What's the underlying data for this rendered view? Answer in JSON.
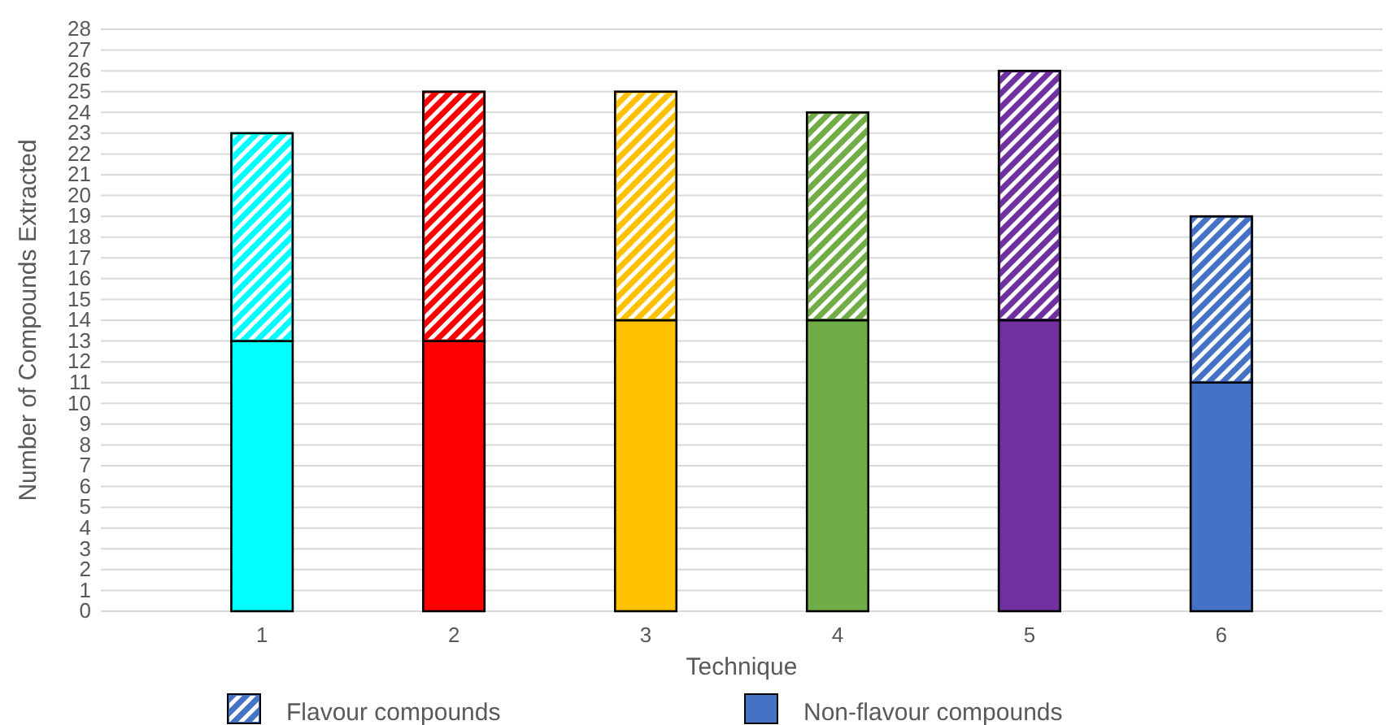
{
  "chart_data": {
    "type": "bar",
    "stacked": true,
    "xlabel": "Technique",
    "ylabel": "Number of Compounds Extracted",
    "categories": [
      "1",
      "2",
      "3",
      "4",
      "5",
      "6"
    ],
    "ylim": [
      0,
      28
    ],
    "yticks": [
      0,
      1,
      2,
      3,
      4,
      5,
      6,
      7,
      8,
      9,
      10,
      11,
      12,
      13,
      14,
      15,
      16,
      17,
      18,
      19,
      20,
      21,
      22,
      23,
      24,
      25,
      26,
      27,
      28
    ],
    "grid": "y",
    "legend": "bottom",
    "series": [
      {
        "name": "Non-flavour compounds",
        "color": "#4472c4",
        "colors": [
          "#00ffff",
          "#ff0000",
          "#ffc000",
          "#70ad47",
          "#7030a0",
          "#4472c4"
        ],
        "values": [
          13,
          13,
          14,
          14,
          14,
          11
        ]
      },
      {
        "name": "Flavour compounds",
        "color": "#4472c4",
        "colors": [
          "#00ffff",
          "#ff0000",
          "#ffc000",
          "#70ad47",
          "#7030a0",
          "#4472c4"
        ],
        "values": [
          10,
          12,
          11,
          10,
          12,
          8
        ]
      }
    ]
  }
}
